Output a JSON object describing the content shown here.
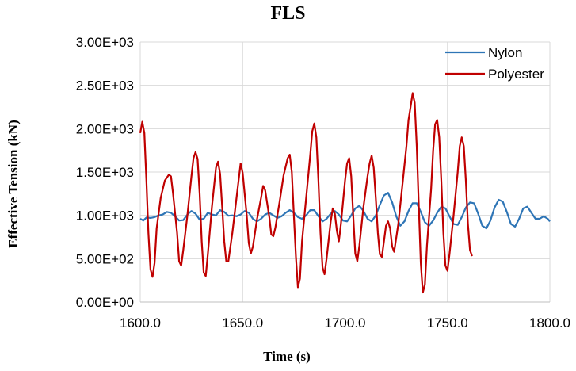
{
  "chart_data": {
    "type": "line",
    "title": "FLS",
    "xlabel": "Time (s)",
    "ylabel": "Effective Tension (kN)",
    "xlim": [
      1600,
      1800
    ],
    "ylim": [
      0,
      3000
    ],
    "x_ticks": [
      1600,
      1650,
      1700,
      1750,
      1800
    ],
    "x_tick_labels": [
      "1600.0",
      "1650.0",
      "1700.0",
      "1750.0",
      "1800.0"
    ],
    "y_ticks": [
      0,
      500,
      1000,
      1500,
      2000,
      2500,
      3000
    ],
    "y_tick_labels": [
      "0.00E+00",
      "5.00E+02",
      "1.00E+03",
      "1.50E+03",
      "2.00E+03",
      "2.50E+03",
      "3.00E+03"
    ],
    "grid": true,
    "legend_position": "top-right",
    "series": [
      {
        "name": "Nylon",
        "color": "#2e75b6",
        "points": [
          [
            1600,
            960
          ],
          [
            1601.5,
            940
          ],
          [
            1603,
            975
          ],
          [
            1605,
            970
          ],
          [
            1607,
            980
          ],
          [
            1609,
            1000
          ],
          [
            1611,
            1010
          ],
          [
            1613,
            1040
          ],
          [
            1615,
            1030
          ],
          [
            1617,
            990
          ],
          [
            1619,
            940
          ],
          [
            1621,
            945
          ],
          [
            1623,
            1010
          ],
          [
            1625,
            1050
          ],
          [
            1627,
            1020
          ],
          [
            1629,
            950
          ],
          [
            1631,
            960
          ],
          [
            1633,
            1030
          ],
          [
            1635,
            1010
          ],
          [
            1637,
            1000
          ],
          [
            1639,
            1060
          ],
          [
            1641,
            1040
          ],
          [
            1643,
            995
          ],
          [
            1645,
            1000
          ],
          [
            1647,
            990
          ],
          [
            1649,
            1010
          ],
          [
            1651,
            1050
          ],
          [
            1653,
            1030
          ],
          [
            1655,
            960
          ],
          [
            1657,
            930
          ],
          [
            1659,
            960
          ],
          [
            1661,
            1010
          ],
          [
            1663,
            1030
          ],
          [
            1665,
            1000
          ],
          [
            1667,
            970
          ],
          [
            1669,
            990
          ],
          [
            1671,
            1030
          ],
          [
            1673,
            1060
          ],
          [
            1675,
            1030
          ],
          [
            1677,
            980
          ],
          [
            1679,
            960
          ],
          [
            1681,
            1000
          ],
          [
            1683,
            1060
          ],
          [
            1685,
            1060
          ],
          [
            1687,
            990
          ],
          [
            1689,
            930
          ],
          [
            1691,
            960
          ],
          [
            1693,
            1020
          ],
          [
            1695,
            1050
          ],
          [
            1697,
            1010
          ],
          [
            1699,
            940
          ],
          [
            1701,
            930
          ],
          [
            1703,
            1000
          ],
          [
            1705,
            1080
          ],
          [
            1707,
            1110
          ],
          [
            1709,
            1050
          ],
          [
            1711,
            960
          ],
          [
            1713,
            930
          ],
          [
            1715,
            1000
          ],
          [
            1717,
            1120
          ],
          [
            1719,
            1230
          ],
          [
            1721,
            1260
          ],
          [
            1723,
            1150
          ],
          [
            1725,
            990
          ],
          [
            1727,
            880
          ],
          [
            1729,
            930
          ],
          [
            1731,
            1050
          ],
          [
            1733,
            1140
          ],
          [
            1735,
            1140
          ],
          [
            1737,
            1040
          ],
          [
            1739,
            920
          ],
          [
            1741,
            880
          ],
          [
            1743,
            940
          ],
          [
            1745,
            1030
          ],
          [
            1747,
            1100
          ],
          [
            1749,
            1080
          ],
          [
            1751,
            990
          ],
          [
            1753,
            900
          ],
          [
            1755,
            890
          ],
          [
            1757,
            980
          ],
          [
            1759,
            1090
          ],
          [
            1761,
            1150
          ],
          [
            1763,
            1140
          ],
          [
            1765,
            1020
          ],
          [
            1767,
            880
          ],
          [
            1769,
            850
          ],
          [
            1771,
            940
          ],
          [
            1773,
            1090
          ],
          [
            1775,
            1180
          ],
          [
            1777,
            1160
          ],
          [
            1779,
            1040
          ],
          [
            1781,
            900
          ],
          [
            1783,
            870
          ],
          [
            1785,
            960
          ],
          [
            1787,
            1080
          ],
          [
            1789,
            1100
          ],
          [
            1791,
            1030
          ],
          [
            1793,
            960
          ],
          [
            1795,
            960
          ],
          [
            1797,
            990
          ],
          [
            1799,
            960
          ],
          [
            1800,
            930
          ]
        ]
      },
      {
        "name": "Polyester",
        "color": "#c00000",
        "points": [
          [
            1600,
            1950
          ],
          [
            1601,
            2080
          ],
          [
            1602,
            1950
          ],
          [
            1603,
            1400
          ],
          [
            1604,
            800
          ],
          [
            1605,
            380
          ],
          [
            1606,
            290
          ],
          [
            1607,
            450
          ],
          [
            1608,
            850
          ],
          [
            1610,
            1200
          ],
          [
            1612,
            1400
          ],
          [
            1614,
            1470
          ],
          [
            1615,
            1450
          ],
          [
            1616,
            1250
          ],
          [
            1618,
            800
          ],
          [
            1619,
            470
          ],
          [
            1620,
            420
          ],
          [
            1621,
            600
          ],
          [
            1623,
            1000
          ],
          [
            1625,
            1450
          ],
          [
            1626,
            1660
          ],
          [
            1627,
            1730
          ],
          [
            1628,
            1650
          ],
          [
            1629,
            1250
          ],
          [
            1630,
            700
          ],
          [
            1631,
            340
          ],
          [
            1632,
            300
          ],
          [
            1633,
            550
          ],
          [
            1635,
            1100
          ],
          [
            1637,
            1550
          ],
          [
            1638,
            1620
          ],
          [
            1639,
            1480
          ],
          [
            1640,
            1100
          ],
          [
            1641,
            700
          ],
          [
            1642,
            470
          ],
          [
            1643,
            470
          ],
          [
            1645,
            800
          ],
          [
            1647,
            1200
          ],
          [
            1649,
            1600
          ],
          [
            1650,
            1490
          ],
          [
            1652,
            1000
          ],
          [
            1653,
            680
          ],
          [
            1654,
            560
          ],
          [
            1655,
            640
          ],
          [
            1657,
            950
          ],
          [
            1659,
            1200
          ],
          [
            1660,
            1340
          ],
          [
            1661,
            1290
          ],
          [
            1663,
            980
          ],
          [
            1664,
            780
          ],
          [
            1665,
            760
          ],
          [
            1666,
            860
          ],
          [
            1668,
            1150
          ],
          [
            1670,
            1460
          ],
          [
            1672,
            1660
          ],
          [
            1673,
            1700
          ],
          [
            1674,
            1500
          ],
          [
            1675,
            1000
          ],
          [
            1676,
            520
          ],
          [
            1677,
            170
          ],
          [
            1678,
            270
          ],
          [
            1679,
            700
          ],
          [
            1681,
            1200
          ],
          [
            1683,
            1700
          ],
          [
            1684,
            1970
          ],
          [
            1685,
            2060
          ],
          [
            1686,
            1900
          ],
          [
            1687,
            1400
          ],
          [
            1688,
            800
          ],
          [
            1689,
            400
          ],
          [
            1690,
            320
          ],
          [
            1691,
            500
          ],
          [
            1693,
            930
          ],
          [
            1694,
            1080
          ],
          [
            1695,
            1020
          ],
          [
            1696,
            820
          ],
          [
            1697,
            700
          ],
          [
            1698,
            900
          ],
          [
            1700,
            1400
          ],
          [
            1701,
            1600
          ],
          [
            1702,
            1660
          ],
          [
            1703,
            1450
          ],
          [
            1704,
            1000
          ],
          [
            1705,
            560
          ],
          [
            1706,
            470
          ],
          [
            1707,
            650
          ],
          [
            1709,
            1100
          ],
          [
            1711,
            1450
          ],
          [
            1712,
            1600
          ],
          [
            1713,
            1690
          ],
          [
            1714,
            1550
          ],
          [
            1715,
            1200
          ],
          [
            1716,
            800
          ],
          [
            1717,
            550
          ],
          [
            1718,
            520
          ],
          [
            1719,
            700
          ],
          [
            1720,
            880
          ],
          [
            1721,
            930
          ],
          [
            1722,
            850
          ],
          [
            1723,
            640
          ],
          [
            1724,
            580
          ],
          [
            1726,
            900
          ],
          [
            1728,
            1350
          ],
          [
            1730,
            1800
          ],
          [
            1731,
            2100
          ],
          [
            1732,
            2250
          ],
          [
            1733,
            2410
          ],
          [
            1734,
            2300
          ],
          [
            1735,
            1800
          ],
          [
            1736,
            1100
          ],
          [
            1737,
            450
          ],
          [
            1738,
            110
          ],
          [
            1739,
            200
          ],
          [
            1740,
            650
          ],
          [
            1742,
            1300
          ],
          [
            1743,
            1750
          ],
          [
            1744,
            2050
          ],
          [
            1745,
            2100
          ],
          [
            1746,
            1900
          ],
          [
            1747,
            1400
          ],
          [
            1748,
            800
          ],
          [
            1749,
            420
          ],
          [
            1750,
            360
          ],
          [
            1751,
            550
          ],
          [
            1753,
            1000
          ],
          [
            1755,
            1500
          ],
          [
            1756,
            1800
          ],
          [
            1757,
            1900
          ],
          [
            1758,
            1800
          ],
          [
            1759,
            1400
          ],
          [
            1760,
            900
          ],
          [
            1761,
            600
          ],
          [
            1762,
            530
          ]
        ]
      }
    ]
  }
}
